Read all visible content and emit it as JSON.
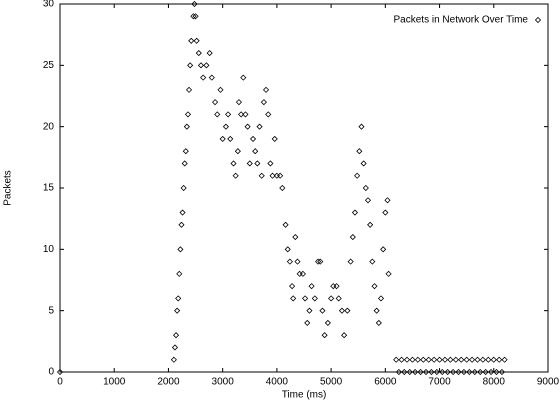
{
  "chart_data": {
    "type": "scatter",
    "x_label": "Time (ms)",
    "y_label": "Packets",
    "xlim": [
      0,
      9000
    ],
    "ylim": [
      0,
      30
    ],
    "xticks": [
      0,
      1000,
      2000,
      3000,
      4000,
      5000,
      6000,
      7000,
      8000,
      9000
    ],
    "yticks": [
      0,
      5,
      10,
      15,
      20,
      25,
      30
    ],
    "grid": false,
    "legend": "upper right",
    "series": [
      {
        "name": "Packets in Network Over Time",
        "color": "#000000",
        "x": [
          0,
          2100,
          2120,
          2140,
          2160,
          2180,
          2200,
          2220,
          2240,
          2260,
          2280,
          2300,
          2320,
          2340,
          2360,
          2380,
          2400,
          2420,
          2460,
          2480,
          2500,
          2520,
          2560,
          2600,
          2640,
          2700,
          2760,
          2800,
          2860,
          2900,
          2960,
          3000,
          3060,
          3100,
          3140,
          3200,
          3240,
          3280,
          3300,
          3340,
          3380,
          3420,
          3460,
          3500,
          3560,
          3600,
          3640,
          3680,
          3720,
          3760,
          3800,
          3840,
          3880,
          3920,
          3960,
          4000,
          4060,
          4100,
          4160,
          4200,
          4240,
          4280,
          4300,
          4340,
          4380,
          4420,
          4480,
          4520,
          4560,
          4600,
          4640,
          4700,
          4760,
          4800,
          4840,
          4880,
          4940,
          5000,
          5040,
          5100,
          5140,
          5200,
          5240,
          5300,
          5360,
          5400,
          5440,
          5480,
          5520,
          5560,
          5600,
          5640,
          5680,
          5720,
          5760,
          5800,
          5840,
          5880,
          5920,
          5960,
          6000,
          6040,
          6060,
          6200,
          6300,
          6400,
          6500,
          6600,
          6700,
          6800,
          6900,
          7000,
          7100,
          7200,
          7300,
          7400,
          7500,
          7600,
          7700,
          7800,
          7900,
          8000,
          8100,
          8200,
          6250,
          6350,
          6450,
          6550,
          6650,
          6750,
          6850,
          6950,
          7050,
          7150,
          7250,
          7350,
          7450,
          7550,
          7650,
          7750,
          7850,
          7950,
          8050,
          8150
        ],
        "values": [
          0,
          1,
          2,
          3,
          5,
          6,
          8,
          10,
          12,
          13,
          15,
          17,
          18,
          20,
          21,
          23,
          25,
          27,
          29,
          30,
          29,
          27,
          26,
          25,
          24,
          25,
          26,
          24,
          22,
          21,
          23,
          19,
          20,
          21,
          19,
          17,
          16,
          18,
          22,
          21,
          24,
          21,
          20,
          17,
          19,
          18,
          17,
          20,
          16,
          22,
          23,
          21,
          17,
          16,
          19,
          16,
          16,
          15,
          12,
          10,
          9,
          7,
          6,
          11,
          9,
          8,
          8,
          6,
          4,
          5,
          7,
          6,
          9,
          9,
          5,
          3,
          4,
          6,
          7,
          7,
          6,
          5,
          3,
          5,
          9,
          11,
          13,
          16,
          18,
          20,
          17,
          15,
          14,
          12,
          9,
          7,
          5,
          4,
          6,
          10,
          13,
          14,
          8,
          1,
          1,
          1,
          1,
          1,
          1,
          1,
          1,
          1,
          1,
          1,
          1,
          1,
          1,
          1,
          1,
          1,
          1,
          1,
          1,
          1,
          0,
          0,
          0,
          0,
          0,
          0,
          0,
          0,
          0,
          0,
          0,
          0,
          0,
          0,
          0,
          0,
          0,
          0,
          0,
          0
        ]
      }
    ]
  }
}
